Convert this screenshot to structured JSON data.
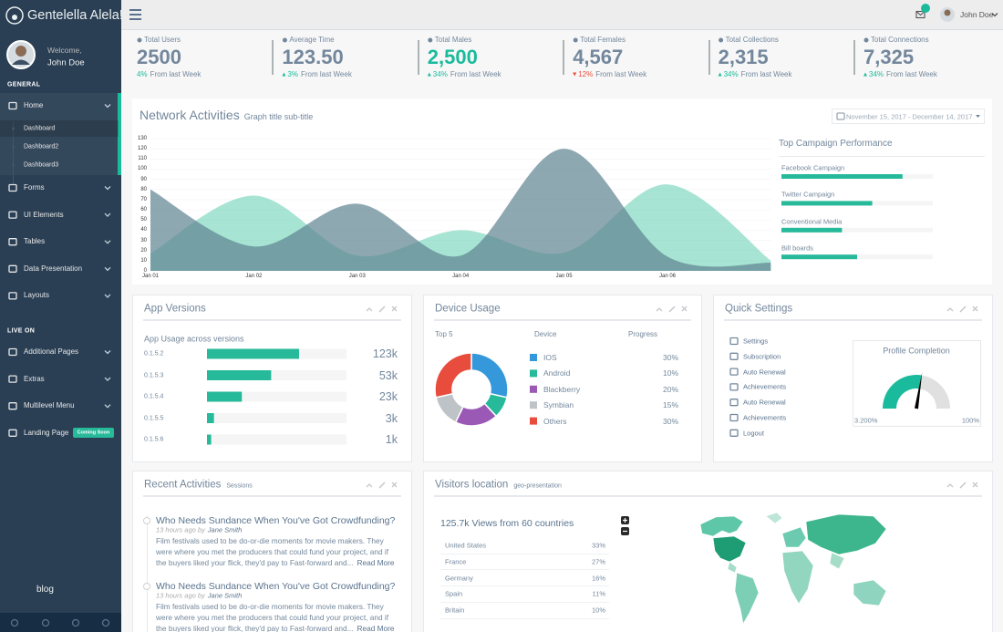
{
  "sidebar": {
    "brand": "Gentelella Alela!",
    "welcome": "Welcome,",
    "user": "John Doe",
    "sections": [
      {
        "title": "GENERAL",
        "items": [
          {
            "label": "Home",
            "children": [
              "Dashboard",
              "Dashboard2",
              "Dashboard3"
            ]
          },
          {
            "label": "Forms"
          },
          {
            "label": "UI Elements"
          },
          {
            "label": "Tables"
          },
          {
            "label": "Data Presentation"
          },
          {
            "label": "Layouts"
          }
        ]
      },
      {
        "title": "LIVE ON",
        "items": [
          {
            "label": "Additional Pages"
          },
          {
            "label": "Extras"
          },
          {
            "label": "Multilevel Menu"
          },
          {
            "label": "Landing Page",
            "badge": "Coming Soon"
          }
        ]
      }
    ],
    "footer_text": "blog"
  },
  "topbar": {
    "notifications": "6",
    "user": "John Doe"
  },
  "tiles": [
    {
      "label": "Total Users",
      "value": "2500",
      "change": "4%",
      "note": "From last Week"
    },
    {
      "label": "Average Time",
      "value": "123.50",
      "change": "3%",
      "note": "From last Week",
      "trend": "up"
    },
    {
      "label": "Total Males",
      "value": "2,500",
      "change": "34%",
      "note": "From last Week",
      "trend": "up",
      "highlight": true
    },
    {
      "label": "Total Females",
      "value": "4,567",
      "change": "12%",
      "note": "From last Week",
      "trend": "down"
    },
    {
      "label": "Total Collections",
      "value": "2,315",
      "change": "34%",
      "note": "From last Week",
      "trend": "up"
    },
    {
      "label": "Total Connections",
      "value": "7,325",
      "change": "34%",
      "note": "From last Week",
      "trend": "up"
    }
  ],
  "network": {
    "title": "Network Activities",
    "subtitle": "Graph title sub-title",
    "date_range": "November 15, 2017 - December 14, 2017"
  },
  "campaign": {
    "title": "Top Campaign Performance"
  },
  "app_versions": {
    "title": "App Versions",
    "subtitle": "App Usage across versions",
    "usage": [
      "123k",
      "53k",
      "23k",
      "3k",
      "1k"
    ]
  },
  "device_usage": {
    "title": "Device Usage",
    "top": "Top 5",
    "device_header": "Device",
    "progress_header": "Progress"
  },
  "quick_settings": {
    "title": "Quick Settings",
    "items": [
      "Settings",
      "Subscription",
      "Auto Renewal",
      "Achievements",
      "Auto Renewal",
      "Achievements",
      "Logout"
    ],
    "profile_title": "Profile Completion",
    "gauge_min_label": "3.200%",
    "gauge_max_label": "100%"
  },
  "recent": {
    "title": "Recent Activities",
    "subtitle": "Sessions",
    "items": [
      {
        "title": "Who Needs Sundance When You've Got Crowdfunding?",
        "time": "13 hours ago by",
        "author": "Jane Smith",
        "body": "Film festivals used to be do-or-die moments for movie makers. They were where you met the producers that could fund your project, and if the buyers liked your flick, they'd pay to Fast-forward and...",
        "more": "Read More"
      },
      {
        "title": "Who Needs Sundance When You've Got Crowdfunding?",
        "time": "13 hours ago by",
        "author": "Jane Smith",
        "body": "Film festivals used to be do-or-die moments for movie makers. They were where you met the producers that could fund your project, and if the buyers liked your flick, they'd pay to Fast-forward and...",
        "more": "Read More"
      }
    ]
  },
  "visitors": {
    "title": "Visitors location",
    "subtitle": "geo-presentation",
    "headline": "125.7k Views from 60 countries",
    "rows": [
      [
        "United States",
        "33%"
      ],
      [
        "France",
        "27%"
      ],
      [
        "Germany",
        "16%"
      ],
      [
        "Spain",
        "11%"
      ],
      [
        "Britain",
        "10%"
      ]
    ]
  },
  "chart_data": [
    {
      "type": "area",
      "smooth": true,
      "grid": true,
      "categories": [
        "Jan 01",
        "Jan 02",
        "Jan 03",
        "Jan 04",
        "Jan 05",
        "Jan 06",
        null
      ],
      "series": [
        {
          "color": "#5E8392",
          "values": [
            80,
            24,
            66,
            15,
            120,
            14,
            8
          ]
        },
        {
          "color": "#4FC9A8",
          "values": [
            17,
            74,
            15,
            40,
            18,
            85,
            10
          ]
        }
      ],
      "ylim": [
        0,
        130
      ],
      "yticks": [
        0,
        10,
        20,
        30,
        40,
        50,
        60,
        70,
        80,
        90,
        100,
        110,
        120,
        130
      ]
    },
    {
      "type": "bar",
      "orientation": "horizontal",
      "color": "#26B99A",
      "categories": [
        "Facebook Campaign",
        "Twitter Campaign",
        "Conventional Media",
        "Bill boards"
      ],
      "values": [
        80,
        60,
        40,
        50
      ],
      "xlim": [
        0,
        100
      ]
    },
    {
      "type": "bar",
      "orientation": "horizontal",
      "color": "#26B99A",
      "categories": [
        "0.1.5.2",
        "0.1.5.3",
        "0.1.5.4",
        "0.1.5.5",
        "0.1.5.6"
      ],
      "values": [
        66,
        46,
        25,
        5,
        3
      ],
      "xlim": [
        0,
        100
      ]
    },
    {
      "type": "pie",
      "donut": true,
      "categories": [
        "IOS",
        "Android",
        "Blackberry",
        "Symbian",
        "Others"
      ],
      "values": [
        30,
        10,
        20,
        15,
        30
      ],
      "value_labels": [
        "30%",
        "10%",
        "20%",
        "15%",
        "30%"
      ],
      "colors": [
        "#3498DB",
        "#26B99A",
        "#9B59B6",
        "#BDC3C7",
        "#E74C3C"
      ]
    },
    {
      "type": "gauge",
      "value": 55,
      "ylim": [
        0,
        100
      ],
      "color": "#1ABB9C"
    }
  ]
}
